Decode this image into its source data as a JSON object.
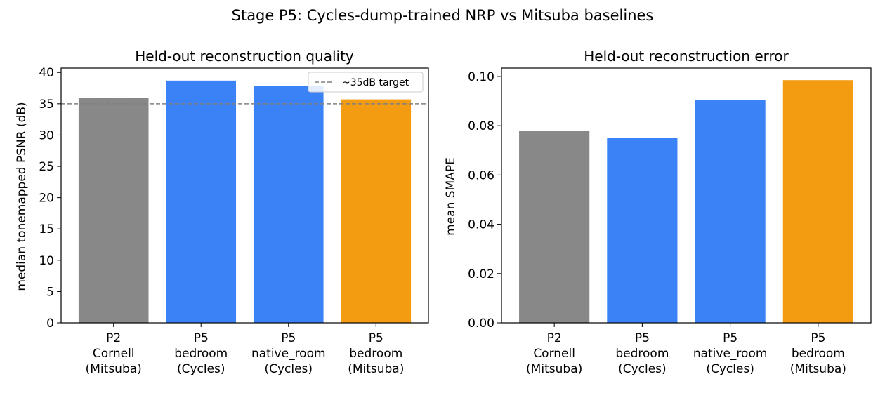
{
  "figure": {
    "title": "Stage P5: Cycles-dump-trained NRP vs Mitsuba baselines"
  },
  "chart_data": [
    {
      "type": "bar",
      "title": "Held-out reconstruction quality",
      "xlabel": "",
      "ylabel": "median tonemapped PSNR (dB)",
      "categories": [
        [
          "P2",
          "Cornell",
          "(Mitsuba)"
        ],
        [
          "P5",
          "bedroom",
          "(Cycles)"
        ],
        [
          "P5",
          "native_room",
          "(Cycles)"
        ],
        [
          "P5",
          "bedroom",
          "(Mitsuba)"
        ]
      ],
      "values": [
        35.9,
        38.7,
        37.8,
        35.7
      ],
      "colors": [
        "#888888",
        "#3b82f6",
        "#3b82f6",
        "#f39c12"
      ],
      "ylim": [
        0,
        40.7
      ],
      "yticks": [
        0,
        5,
        10,
        15,
        20,
        25,
        30,
        35,
        40
      ],
      "ytick_labels": [
        "0",
        "5",
        "10",
        "15",
        "20",
        "25",
        "30",
        "35",
        "40"
      ],
      "reference_line": {
        "value": 35,
        "label": "~35dB target",
        "color": "#808080"
      },
      "legend": {
        "placement": "top-right",
        "entries": [
          "~35dB target"
        ]
      },
      "grid": false
    },
    {
      "type": "bar",
      "title": "Held-out reconstruction error",
      "xlabel": "",
      "ylabel": "mean SMAPE",
      "categories": [
        [
          "P2",
          "Cornell",
          "(Mitsuba)"
        ],
        [
          "P5",
          "bedroom",
          "(Cycles)"
        ],
        [
          "P5",
          "native_room",
          "(Cycles)"
        ],
        [
          "P5",
          "bedroom",
          "(Mitsuba)"
        ]
      ],
      "values": [
        0.078,
        0.075,
        0.0905,
        0.0985
      ],
      "colors": [
        "#888888",
        "#3b82f6",
        "#3b82f6",
        "#f39c12"
      ],
      "ylim": [
        0,
        0.1034
      ],
      "yticks": [
        0,
        0.02,
        0.04,
        0.06,
        0.08,
        0.1
      ],
      "ytick_labels": [
        "0.00",
        "0.02",
        "0.04",
        "0.06",
        "0.08",
        "0.10"
      ],
      "grid": false
    }
  ]
}
